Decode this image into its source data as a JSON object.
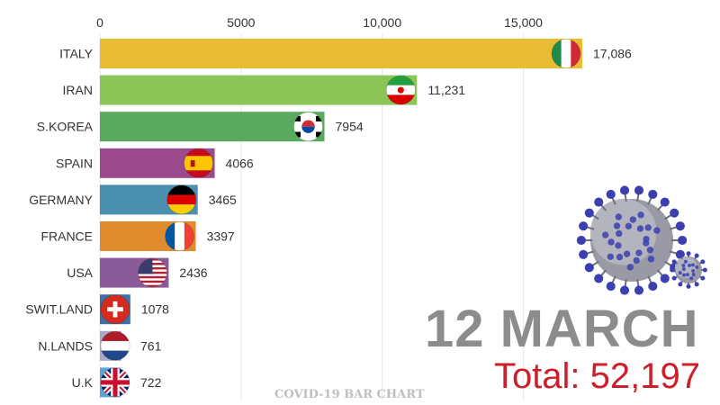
{
  "chart_data": {
    "type": "bar",
    "orientation": "horizontal",
    "categories": [
      "ITALY",
      "IRAN",
      "S.KOREA",
      "SPAIN",
      "GERMANY",
      "FRANCE",
      "USA",
      "SWIT.LAND",
      "N.LANDS",
      "U.K"
    ],
    "values": [
      17086,
      11231,
      7954,
      4066,
      3465,
      3397,
      2436,
      1078,
      761,
      722
    ],
    "value_labels": [
      "17,086",
      "11,231",
      "7954",
      "4066",
      "3465",
      "3397",
      "2436",
      "1078",
      "761",
      "722"
    ],
    "bar_colors": [
      "#e8bd33",
      "#8cc659",
      "#59aa5f",
      "#9b4b8c",
      "#4a8fad",
      "#e08b2e",
      "#8a5b99",
      "#3d6fa8",
      "#a8a8c8",
      "#5aa6d6"
    ],
    "flags": [
      "italy-flag",
      "iran-flag",
      "south-korea-flag",
      "spain-flag",
      "germany-flag",
      "france-flag",
      "usa-flag",
      "switzerland-flag",
      "netherlands-flag",
      "uk-flag"
    ],
    "x_ticks": [
      0,
      5000,
      10000,
      15000
    ],
    "x_tick_labels": [
      "0",
      "5000",
      "10,000",
      "15,000"
    ],
    "xlim": [
      0,
      17086
    ],
    "axis_position": "top",
    "grid": true,
    "title": "",
    "xlabel": "",
    "ylabel": ""
  },
  "overlay": {
    "date": "12 MARCH",
    "total": "Total: 52,197",
    "caption": "COVID-19 BAR CHART",
    "date_color": "#8c8c8c",
    "total_color": "#cc1f2b",
    "decoration_icon": "coronavirus-icon"
  }
}
